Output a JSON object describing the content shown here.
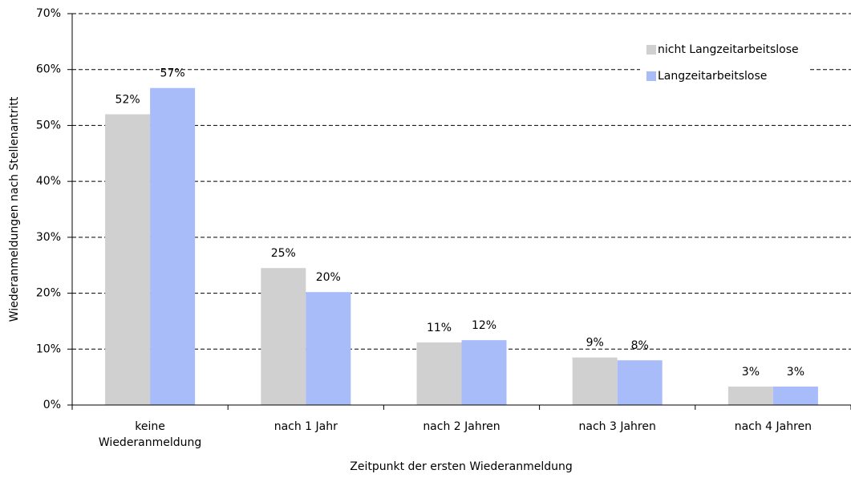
{
  "chart_data": {
    "type": "bar",
    "x_label": "Zeitpunkt der ersten Wiederanmeldung",
    "y_label": "Wiederanmeldungen nach Stellenantritt",
    "categories": [
      "keine Wiederanmeldung",
      "nach 1 Jahr",
      "nach 2 Jahren",
      "nach 3 Jahren",
      "nach 4 Jahren"
    ],
    "series": [
      {
        "name": "nicht Langzeitarbeitslose",
        "color": "#d0d0d0",
        "values": [
          52.0,
          24.5,
          11.2,
          8.5,
          3.3
        ],
        "value_labels": [
          "52%",
          "25%",
          "11%",
          "9%",
          "3%"
        ]
      },
      {
        "name": "Langzeitarbeitslose",
        "color": "#a9bcfa",
        "values": [
          56.7,
          20.2,
          11.6,
          8.0,
          3.3
        ],
        "value_labels": [
          "57%",
          "20%",
          "12%",
          "8%",
          "3%"
        ]
      }
    ],
    "ylim": [
      0,
      70
    ],
    "yticks": [
      {
        "value": 0,
        "label": "0%"
      },
      {
        "value": 10,
        "label": "10%"
      },
      {
        "value": 20,
        "label": "20%"
      },
      {
        "value": 30,
        "label": "30%"
      },
      {
        "value": 40,
        "label": "40%"
      },
      {
        "value": 50,
        "label": "50%"
      },
      {
        "value": 60,
        "label": "60%"
      },
      {
        "value": 70,
        "label": "70%"
      }
    ],
    "grid": true,
    "legend": "upper right"
  }
}
